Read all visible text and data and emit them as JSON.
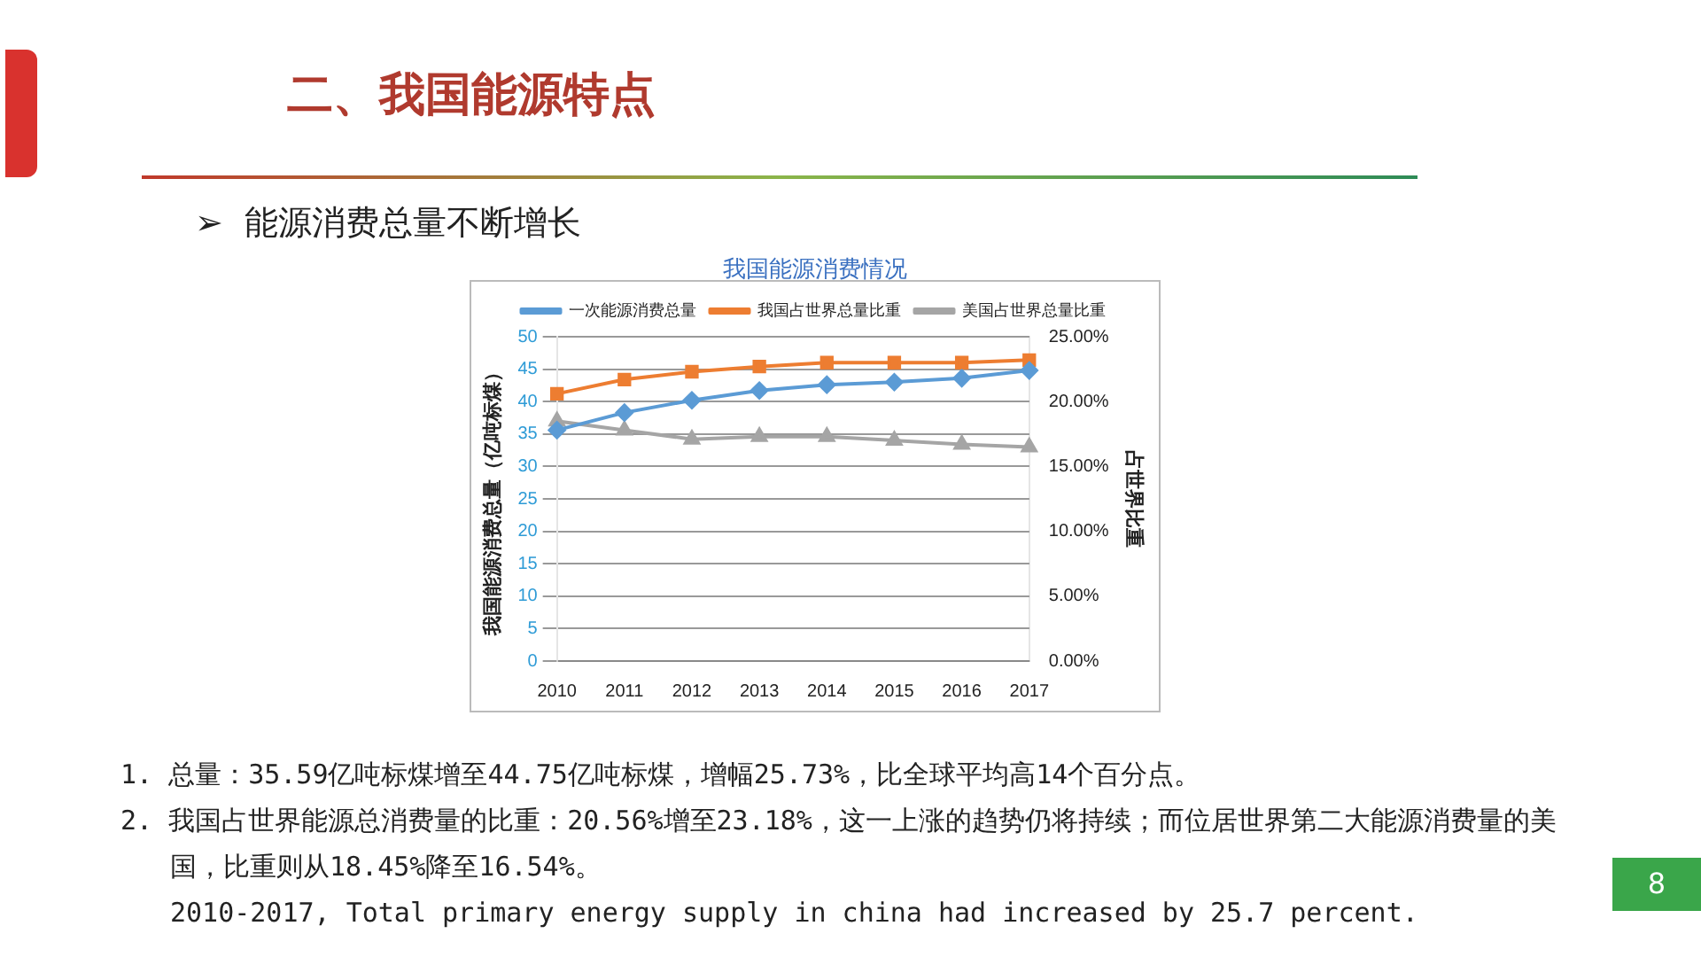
{
  "chart_data": {
    "type": "line",
    "title": "我国能源消费情况",
    "ylabel": "我国能源消费总量（亿吨标煤）",
    "y2label": "占世界比重",
    "categories": [
      "2010",
      "2011",
      "2012",
      "2013",
      "2014",
      "2015",
      "2016",
      "2017"
    ],
    "series": [
      {
        "name": "一次能源消费总量",
        "color": "#5b9bd5",
        "marker": "diamond",
        "values": [
          35.6,
          38.3,
          40.2,
          41.7,
          42.6,
          43.0,
          43.6,
          44.8
        ]
      },
      {
        "name": "我国占世界总量比重",
        "color": "#ed7d31",
        "marker": "square",
        "axis": "y2",
        "values": [
          20.6,
          21.7,
          22.3,
          22.7,
          23.0,
          23.0,
          23.0,
          23.2
        ]
      },
      {
        "name": "美国占世界总量比重",
        "color": "#a5a5a5",
        "marker": "triangle",
        "axis": "y2",
        "values": [
          18.5,
          17.8,
          17.1,
          17.3,
          17.3,
          17.0,
          16.7,
          16.5
        ]
      }
    ],
    "ylim": [
      0,
      50
    ],
    "yticks": [
      0,
      5,
      10,
      15,
      20,
      25,
      30,
      35,
      40,
      45,
      50
    ],
    "y2lim": [
      0,
      25
    ],
    "y2ticks": [
      {
        "value": 0,
        "label": "0.00%"
      },
      {
        "value": 5,
        "label": "5.00%"
      },
      {
        "value": 10,
        "label": "10.00%"
      },
      {
        "value": 15,
        "label": "15.00%"
      },
      {
        "value": 20,
        "label": "20.00%"
      },
      {
        "value": 25,
        "label": "25.00%"
      }
    ],
    "grid": "y",
    "legend": "top",
    "line_style": "solid",
    "annotations": [
      "二、我国能源特点",
      "➢  能源消费总量不断增长",
      "1.  总量：35.59亿吨标煤增至44.75亿吨标煤，增幅25.73%，比全球平均高14个百分点。",
      "2.  我国占世界能源总消费量的比重：20.56%增至23.18%，这一上涨的趋势仍将持续；而位居世界第二大能源消费量的美国，比重则从18.45%降至16.54%。",
      "2010-2017, Total primary energy supply in china had increased by 25.7 percent.",
      "8"
    ]
  }
}
